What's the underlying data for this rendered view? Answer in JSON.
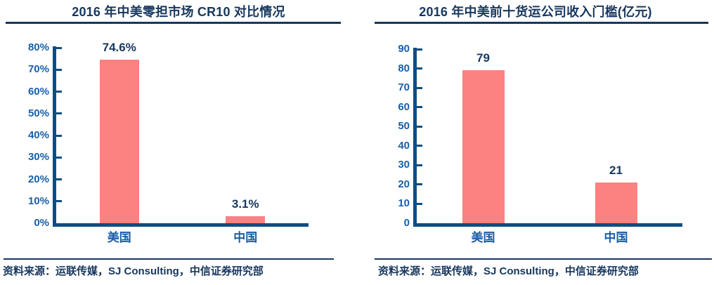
{
  "chart_data": [
    {
      "type": "bar",
      "title": "2016 年中美零担市场 CR10 对比情况",
      "categories": [
        "美国",
        "中国"
      ],
      "values": [
        74.6,
        3.1
      ],
      "value_labels": [
        "74.6%",
        "3.1%"
      ],
      "yticks": [
        "80%",
        "70%",
        "60%",
        "50%",
        "40%",
        "30%",
        "20%",
        "10%",
        "0%"
      ],
      "ylim": [
        0,
        80
      ],
      "grid": false,
      "legend": "none",
      "source": "资料来源：运联传媒，SJ Consulting，中信证券研究部"
    },
    {
      "type": "bar",
      "title": "2016 年中美前十货运公司收入门槛(亿元)",
      "categories": [
        "美国",
        "中国"
      ],
      "values": [
        79,
        21
      ],
      "value_labels": [
        "79",
        "21"
      ],
      "yticks": [
        "90",
        "80",
        "70",
        "60",
        "50",
        "40",
        "30",
        "20",
        "10",
        "0"
      ],
      "ylim": [
        0,
        90
      ],
      "grid": false,
      "legend": "none",
      "source": "资料来源：运联传媒，SJ Consulting，中信证券研究部"
    }
  ],
  "colors": {
    "bar_fill": "#FC8181",
    "axis": "#0E4D82",
    "tick_label": "#1A5FA8",
    "text": "#17375E"
  }
}
